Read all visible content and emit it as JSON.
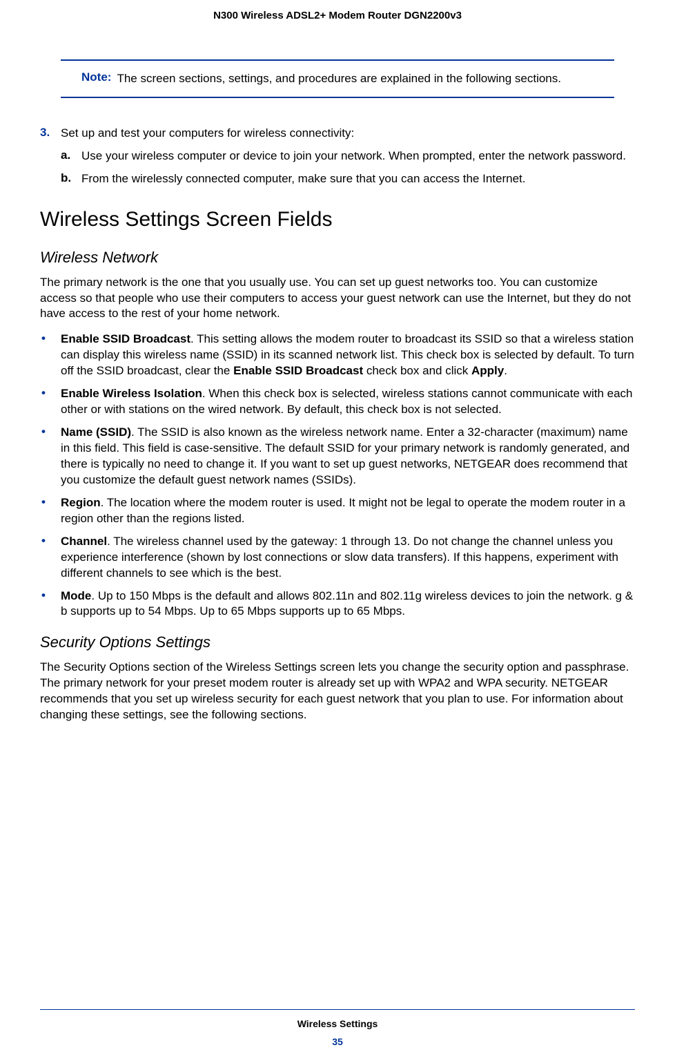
{
  "header": {
    "title": "N300 Wireless ADSL2+ Modem Router DGN2200v3"
  },
  "note": {
    "label": "Note:",
    "text": "The screen sections, settings, and procedures are explained in the following sections."
  },
  "step3": {
    "marker": "3.",
    "text": "Set up and test your computers for wireless connectivity:",
    "sub_a": {
      "marker": "a.",
      "text": "Use your wireless computer or device to join your network. When prompted, enter the network password."
    },
    "sub_b": {
      "marker": "b.",
      "text": "From the wirelessly connected computer, make sure that you can access the Internet."
    }
  },
  "h1": "Wireless Settings Screen Fields",
  "h2_network": "Wireless Network",
  "network_intro": "The primary network is the one that you usually use. You can set up guest networks too. You can customize access so that people who use their computers to access your guest network can use the Internet, but they do not have access to the rest of your home network.",
  "bullets": {
    "ssid_broadcast": {
      "bold1": "Enable SSID Broadcast",
      "text1": ". This setting allows the modem router to broadcast its SSID so that a wireless station can display this wireless name (SSID) in its scanned network list. This check box is selected by default. To turn off the SSID broadcast, clear the ",
      "bold2": "Enable SSID Broadcast",
      "text2": " check box and click ",
      "bold3": "Apply",
      "text3": "."
    },
    "isolation": {
      "bold": "Enable Wireless Isolation",
      "text": ". When this check box is selected, wireless stations cannot communicate with each other or with stations on the wired network. By default, this check box is not selected."
    },
    "name_ssid": {
      "bold": "Name (SSID)",
      "text": ". The SSID is also known as the wireless network name. Enter a 32-character (maximum) name in this field. This field is case-sensitive. The default SSID for your primary network is randomly generated, and there is typically no need to change it. If you want to set up guest networks, NETGEAR does recommend that you customize the default guest network names (SSIDs)."
    },
    "region": {
      "bold": "Region",
      "text": ". The location where the modem router is used. It might not be legal to operate the modem router in a region other than the regions listed."
    },
    "channel": {
      "bold": "Channel",
      "text": ". The wireless channel used by the gateway: 1 through 13. Do not change the channel unless you experience interference (shown by lost connections or slow data transfers). If this happens, experiment with different channels to see which is the best."
    },
    "mode": {
      "bold": "Mode",
      "text": ". Up to 150 Mbps is the default and allows 802.11n and 802.11g wireless devices to join the network. g & b supports up to 54 Mbps. Up to 65 Mbps supports up to 65 Mbps."
    }
  },
  "h2_security": "Security Options Settings",
  "security_text": "The Security Options section of the Wireless Settings screen lets you change the security option and passphrase. The primary network for your preset modem router is already set up with WPA2 and WPA security. NETGEAR recommends that you set up wireless security for each guest network that you plan to use. For information about changing these settings, see the following sections.",
  "footer": {
    "title": "Wireless Settings",
    "page": "35"
  },
  "colors": {
    "accent": "#003399",
    "text": "#000000",
    "background": "#ffffff"
  }
}
